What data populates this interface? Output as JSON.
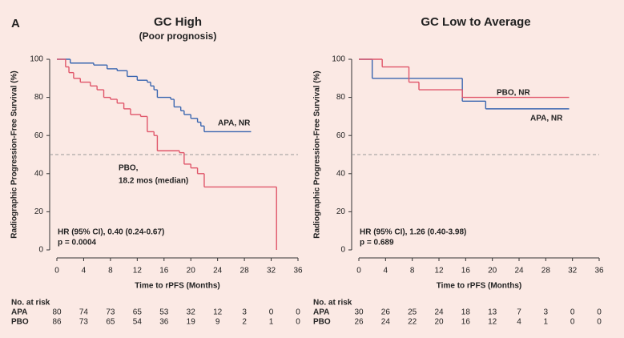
{
  "chart_data": [
    {
      "type": "step",
      "panel_label": "A",
      "title": "GC High",
      "subtitle": "(Poor prognosis)",
      "x_label": "Time to rPFS (Months)",
      "y_label": "Radiographic Progression-Free Survival (%)",
      "xlim": [
        0,
        36
      ],
      "ylim": [
        0,
        100
      ],
      "xticks": [
        0,
        4,
        8,
        12,
        16,
        20,
        24,
        28,
        32,
        36
      ],
      "yticks": [
        0,
        20,
        40,
        60,
        80,
        100
      ],
      "reference_line": 50,
      "series": [
        {
          "name": "APA",
          "color": "#3a66b0",
          "x": [
            0,
            2,
            5.5,
            7.5,
            9,
            10.5,
            12,
            13.5,
            14,
            14.5,
            15,
            17,
            17.5,
            18.5,
            19,
            20,
            21,
            21.5,
            22,
            29
          ],
          "values": [
            100,
            98,
            97,
            95,
            94,
            91,
            89,
            88,
            86,
            84,
            80,
            79,
            75,
            73,
            71,
            69,
            67,
            65,
            62,
            62
          ],
          "at_risk": [
            80,
            74,
            73,
            65,
            53,
            32,
            12,
            3,
            0,
            0
          ]
        },
        {
          "name": "PBO",
          "color": "#e0566a",
          "x": [
            0,
            1.3,
            1.8,
            2.5,
            3.5,
            5,
            6,
            7,
            8,
            9,
            10,
            11,
            12.5,
            13.5,
            14.5,
            15,
            18.3,
            19,
            20,
            21,
            22,
            32.8
          ],
          "values": [
            100,
            96,
            93,
            90,
            88,
            86,
            84,
            80,
            79,
            77,
            74,
            71,
            70,
            62,
            60,
            52,
            51,
            45,
            43,
            40,
            33,
            0
          ],
          "at_risk": [
            86,
            73,
            65,
            54,
            36,
            19,
            9,
            2,
            1,
            0
          ]
        }
      ],
      "annotations": [
        "APA, NR",
        "PBO,",
        "18.2 mos (median)",
        "HR (95% CI), 0.40 (0.24-0.67)",
        "p = 0.0004"
      ],
      "at_risk_title": "No. at risk"
    },
    {
      "type": "step",
      "title": "GC Low to Average",
      "x_label": "Time to rPFS (Months)",
      "y_label": "Radiographic Progression-Free Survival (%)",
      "xlim": [
        0,
        36
      ],
      "ylim": [
        0,
        100
      ],
      "xticks": [
        0,
        4,
        8,
        12,
        16,
        20,
        24,
        28,
        32,
        36
      ],
      "yticks": [
        0,
        20,
        40,
        60,
        80,
        100
      ],
      "reference_line": 50,
      "series": [
        {
          "name": "APA",
          "color": "#3a66b0",
          "x": [
            0,
            2,
            15.5,
            19,
            31.5
          ],
          "values": [
            100,
            90,
            78,
            74,
            74
          ],
          "at_risk": [
            30,
            26,
            25,
            24,
            18,
            13,
            7,
            3,
            0,
            0
          ]
        },
        {
          "name": "PBO",
          "color": "#e0566a",
          "x": [
            0,
            3.5,
            7.5,
            9,
            15.5,
            31.5
          ],
          "values": [
            100,
            96,
            88,
            84,
            80,
            80
          ],
          "at_risk": [
            26,
            24,
            22,
            20,
            16,
            12,
            4,
            1,
            0,
            0
          ]
        }
      ],
      "annotations": [
        "PBO, NR",
        "APA, NR",
        "HR (95% CI), 1.26 (0.40-3.98)",
        "p = 0.689"
      ],
      "at_risk_title": "No. at risk"
    }
  ]
}
